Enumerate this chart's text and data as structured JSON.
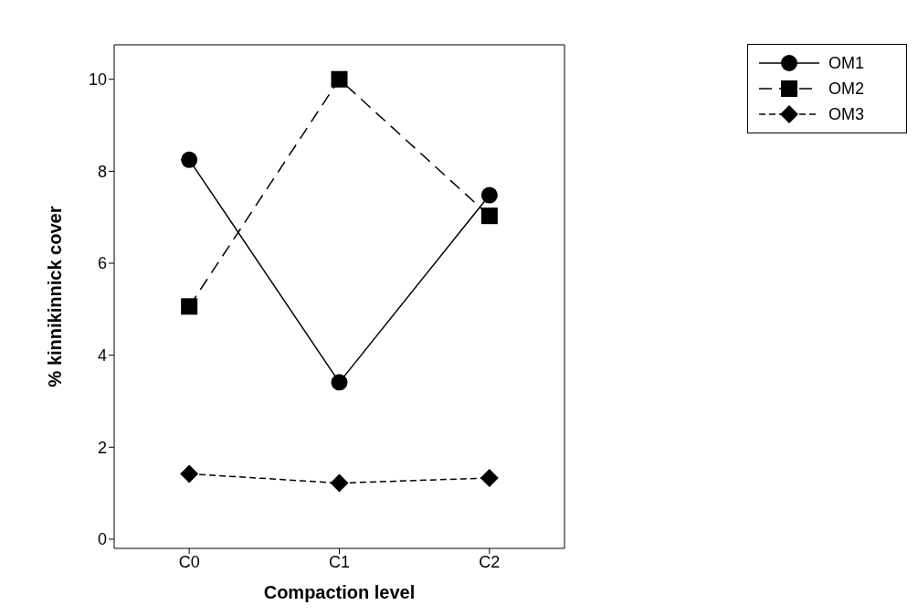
{
  "chart_data": {
    "type": "line",
    "xlabel": "Compaction level",
    "ylabel": "% kinnikinnick cover",
    "categories": [
      "C0",
      "C1",
      "C2"
    ],
    "series": [
      {
        "name": "OM1",
        "color": "#000000",
        "values": [
          8.25,
          3.41,
          7.48
        ],
        "marker": "circle",
        "line_style": "solid"
      },
      {
        "name": "OM2",
        "color": "#000000",
        "values": [
          5.06,
          10,
          7.03
        ],
        "marker": "square",
        "line_style": "dashed"
      },
      {
        "name": "OM3",
        "color": "#000000",
        "values": [
          1.42,
          1.22,
          1.33
        ],
        "marker": "diamond",
        "line_style": "dotted"
      }
    ],
    "ylim": [
      -0.2,
      10.75
    ],
    "yticks": [
      0,
      2,
      4,
      6,
      8,
      10
    ],
    "grid": false,
    "legend": "top right"
  }
}
